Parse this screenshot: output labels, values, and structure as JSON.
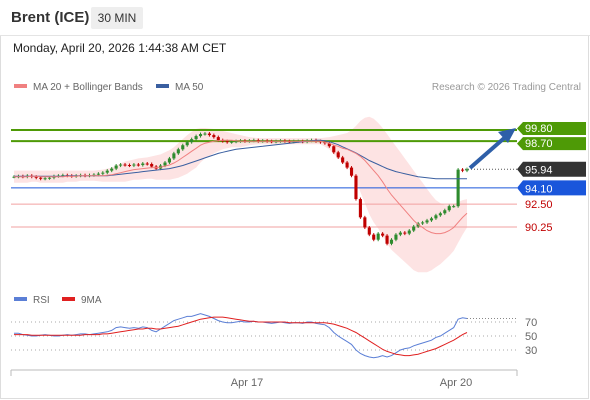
{
  "header": {
    "title": "Brent (ICE)",
    "timeframe": "30 MIN"
  },
  "datetime": "Monday, April 20, 2026 1:44:38 AM CET",
  "legend": {
    "ma20": "MA 20 + Bollinger Bands",
    "ma50": "MA 50",
    "copyright": "Research © 2026 Trading Central",
    "rsi": "RSI",
    "ma9": "9MA"
  },
  "colors": {
    "ma20": "#f08080",
    "ma50": "#3a5fa0",
    "bollinger_fill": "#fde0e0",
    "resistance": "#4e9a06",
    "pivot": "#1a56db",
    "support": "#f2a0a0",
    "current": "#333333",
    "candle_up": "#2e8b2e",
    "candle_down": "#c00000",
    "rsi": "#5b7fd6",
    "rsi_ma": "#e02020",
    "arrow": "#2e5fa8"
  },
  "chart_data": [
    {
      "type": "candlestick",
      "title": "Brent (ICE)",
      "timeframe": "30 MIN",
      "x_ticks": [
        "Apr 17",
        "Apr 20"
      ],
      "ylim": [
        86.5,
        101.5
      ],
      "price_levels": [
        {
          "label": "99.80",
          "value": 99.8,
          "kind": "resistance"
        },
        {
          "label": "98.70",
          "value": 98.7,
          "kind": "resistance"
        },
        {
          "label": "95.94",
          "value": 95.94,
          "kind": "current"
        },
        {
          "label": "94.10",
          "value": 94.1,
          "kind": "pivot"
        },
        {
          "label": "92.50",
          "value": 92.5,
          "kind": "support"
        },
        {
          "label": "90.25",
          "value": 90.25,
          "kind": "support"
        }
      ],
      "close": [
        95.2,
        95.25,
        95.2,
        95.3,
        95.2,
        95.1,
        95.0,
        95.05,
        95.1,
        95.25,
        95.3,
        95.35,
        95.3,
        95.25,
        95.3,
        95.35,
        95.3,
        95.35,
        95.4,
        95.5,
        95.6,
        95.8,
        96.0,
        96.3,
        96.4,
        96.35,
        96.3,
        96.4,
        96.35,
        96.5,
        96.45,
        96.2,
        96.0,
        96.3,
        96.6,
        97.0,
        97.5,
        97.9,
        98.3,
        98.6,
        98.9,
        99.2,
        99.4,
        99.45,
        99.3,
        99.1,
        98.8,
        98.7,
        98.6,
        98.65,
        98.7,
        98.75,
        98.7,
        98.75,
        98.8,
        98.7,
        98.75,
        98.7,
        98.65,
        98.7,
        98.75,
        98.7,
        98.65,
        98.7,
        98.7,
        98.65,
        98.75,
        98.8,
        98.7,
        98.6,
        98.5,
        98.2,
        97.6,
        97.1,
        96.6,
        96.1,
        95.3,
        93.0,
        91.2,
        90.2,
        89.5,
        89.0,
        89.6,
        89.4,
        88.6,
        89.0,
        89.5,
        89.7,
        89.6,
        89.9,
        90.3,
        90.6,
        90.7,
        90.9,
        91.1,
        91.4,
        91.6,
        91.9,
        92.3,
        92.3,
        95.9,
        95.8,
        95.94
      ],
      "ma20": [
        95.2,
        95.2,
        95.2,
        95.2,
        95.25,
        95.25,
        95.2,
        95.2,
        95.2,
        95.2,
        95.2,
        95.2,
        95.25,
        95.25,
        95.25,
        95.3,
        95.3,
        95.3,
        95.3,
        95.3,
        95.3,
        95.35,
        95.4,
        95.5,
        95.6,
        95.7,
        95.8,
        95.9,
        95.95,
        96.0,
        96.05,
        96.1,
        96.1,
        96.15,
        96.25,
        96.35,
        96.55,
        96.8,
        97.1,
        97.4,
        97.7,
        98.0,
        98.3,
        98.5,
        98.6,
        98.7,
        98.75,
        98.8,
        98.8,
        98.8,
        98.75,
        98.7,
        98.7,
        98.7,
        98.7,
        98.7,
        98.7,
        98.7,
        98.7,
        98.7,
        98.7,
        98.7,
        98.7,
        98.7,
        98.7,
        98.7,
        98.7,
        98.7,
        98.7,
        98.7,
        98.6,
        98.5,
        98.3,
        98.2,
        98.0,
        97.9,
        97.7,
        97.5,
        97.2,
        96.8,
        96.3,
        95.8,
        95.3,
        94.7,
        94.0,
        93.4,
        92.9,
        92.4,
        91.9,
        91.4,
        90.9,
        90.5,
        90.2,
        89.9,
        89.7,
        89.6,
        89.6,
        89.7,
        89.9,
        90.2,
        90.7,
        91.2,
        91.6
      ],
      "ma50": [
        95.25,
        95.25,
        95.25,
        95.25,
        95.25,
        95.25,
        95.25,
        95.25,
        95.25,
        95.25,
        95.25,
        95.25,
        95.3,
        95.3,
        95.3,
        95.3,
        95.3,
        95.3,
        95.3,
        95.3,
        95.3,
        95.3,
        95.35,
        95.4,
        95.45,
        95.5,
        95.55,
        95.6,
        95.65,
        95.7,
        95.75,
        95.8,
        95.85,
        95.9,
        95.95,
        96.0,
        96.1,
        96.2,
        96.3,
        96.45,
        96.6,
        96.75,
        96.9,
        97.05,
        97.2,
        97.35,
        97.5,
        97.6,
        97.7,
        97.8,
        97.9,
        97.95,
        98.0,
        98.05,
        98.1,
        98.15,
        98.2,
        98.25,
        98.3,
        98.35,
        98.4,
        98.45,
        98.5,
        98.55,
        98.6,
        98.65,
        98.7,
        98.75,
        98.8,
        98.8,
        98.75,
        98.65,
        98.5,
        98.35,
        98.15,
        97.95,
        97.75,
        97.55,
        97.3,
        97.05,
        96.8,
        96.6,
        96.4,
        96.2,
        96.0,
        95.85,
        95.7,
        95.6,
        95.5,
        95.4,
        95.3,
        95.2,
        95.15,
        95.1,
        95.05,
        95.0,
        95.0,
        95.0,
        95.0,
        95.0,
        95.0,
        95.0,
        95.0
      ],
      "bb_upper": [
        95.8,
        95.8,
        95.8,
        95.8,
        95.8,
        95.8,
        95.8,
        95.8,
        95.8,
        95.8,
        95.8,
        95.8,
        95.8,
        95.8,
        95.8,
        95.8,
        95.8,
        95.8,
        95.8,
        95.85,
        95.9,
        96.0,
        96.1,
        96.3,
        96.5,
        96.7,
        96.8,
        96.9,
        97.0,
        97.05,
        97.1,
        97.2,
        97.3,
        97.4,
        97.6,
        97.8,
        98.1,
        98.5,
        98.9,
        99.3,
        99.6,
        99.9,
        100.0,
        100.0,
        99.95,
        99.9,
        99.8,
        99.7,
        99.6,
        99.5,
        99.4,
        99.3,
        99.2,
        99.1,
        99.05,
        99.0,
        99.0,
        99.0,
        99.0,
        99.0,
        99.0,
        99.0,
        99.0,
        99.0,
        99.0,
        99.0,
        99.0,
        99.0,
        99.0,
        99.0,
        99.05,
        99.1,
        99.2,
        99.3,
        99.4,
        99.5,
        99.8,
        100.2,
        100.7,
        101.0,
        101.1,
        100.9,
        100.5,
        100.0,
        99.4,
        98.8,
        98.2,
        97.6,
        97.0,
        96.4,
        95.8,
        95.2,
        94.6,
        94.0,
        93.4,
        92.9,
        92.6,
        92.4,
        92.4,
        92.5,
        92.7,
        92.9,
        93.0
      ],
      "bb_lower": [
        94.6,
        94.6,
        94.6,
        94.6,
        94.7,
        94.7,
        94.6,
        94.6,
        94.6,
        94.6,
        94.6,
        94.6,
        94.7,
        94.7,
        94.7,
        94.8,
        94.8,
        94.8,
        94.8,
        94.75,
        94.7,
        94.7,
        94.7,
        94.7,
        94.7,
        94.7,
        94.8,
        94.9,
        94.9,
        94.95,
        95.0,
        95.0,
        94.9,
        94.9,
        94.9,
        94.9,
        95.0,
        95.1,
        95.3,
        95.5,
        95.8,
        96.1,
        96.6,
        97.0,
        97.25,
        97.5,
        97.7,
        97.9,
        98.0,
        98.1,
        98.1,
        98.1,
        98.2,
        98.3,
        98.35,
        98.4,
        98.4,
        98.4,
        98.4,
        98.4,
        98.4,
        98.4,
        98.4,
        98.4,
        98.4,
        98.4,
        98.4,
        98.4,
        98.4,
        98.4,
        98.15,
        97.9,
        97.4,
        97.1,
        96.6,
        96.3,
        95.6,
        94.8,
        93.7,
        92.6,
        91.5,
        90.7,
        90.1,
        89.4,
        88.6,
        88.0,
        87.6,
        87.2,
        86.8,
        86.4,
        86.0,
        85.8,
        85.8,
        85.8,
        86.0,
        86.3,
        86.6,
        87.0,
        87.4,
        87.9,
        88.7,
        89.5,
        90.2
      ]
    },
    {
      "type": "line",
      "title": "RSI",
      "yticks": [
        70,
        50,
        30
      ],
      "ylim": [
        0,
        100
      ],
      "series": [
        {
          "name": "RSI",
          "values": [
            54,
            54,
            52,
            51,
            50,
            50,
            51,
            52,
            51,
            50,
            50,
            51,
            52,
            51,
            52,
            53,
            53,
            52,
            53,
            54,
            55,
            56,
            58,
            62,
            63,
            62,
            61,
            62,
            61,
            63,
            62,
            58,
            56,
            60,
            64,
            68,
            72,
            74,
            76,
            78,
            78,
            80,
            82,
            80,
            78,
            75,
            72,
            70,
            69,
            69,
            70,
            71,
            70,
            70,
            71,
            70,
            70,
            69,
            68,
            69,
            70,
            69,
            68,
            69,
            69,
            68,
            70,
            70,
            68,
            67,
            66,
            62,
            55,
            50,
            46,
            42,
            38,
            30,
            25,
            22,
            20,
            19,
            20,
            22,
            20,
            22,
            26,
            30,
            32,
            33,
            36,
            38,
            40,
            42,
            44,
            48,
            50,
            54,
            58,
            62,
            74,
            76,
            75
          ]
        },
        {
          "name": "9MA",
          "values": [
            52,
            52,
            52,
            52,
            51,
            51,
            51,
            51,
            51,
            51,
            51,
            51,
            51,
            51,
            51,
            51,
            52,
            52,
            52,
            52,
            53,
            53,
            54,
            55,
            56,
            57,
            58,
            59,
            60,
            60,
            61,
            61,
            60,
            60,
            61,
            62,
            63,
            64,
            66,
            68,
            70,
            72,
            74,
            75,
            76,
            77,
            77,
            77,
            76,
            75,
            74,
            73,
            72,
            71,
            71,
            70,
            70,
            70,
            70,
            70,
            70,
            70,
            69,
            69,
            69,
            69,
            69,
            69,
            69,
            69,
            69,
            68,
            67,
            65,
            63,
            61,
            58,
            55,
            51,
            47,
            43,
            39,
            35,
            31,
            28,
            26,
            24,
            23,
            22,
            22,
            23,
            24,
            26,
            28,
            30,
            32,
            35,
            38,
            41,
            44,
            48,
            52,
            55
          ]
        }
      ]
    }
  ]
}
